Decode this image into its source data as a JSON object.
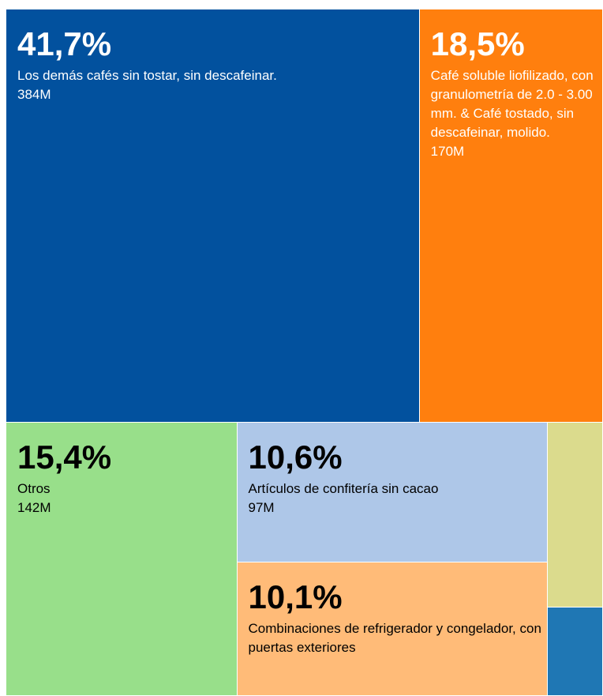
{
  "chart_data": {
    "type": "treemap",
    "names": [
      "Los demás cafés sin tostar, sin descafeinar.",
      "Café soluble liofilizado, con granulometría de 2.0 - 3.00 mm. & Café tostado, sin descafeinar, molido.",
      "Otros",
      "Artículos de confitería sin cacao",
      "Combinaciones de refrigerador y congelador, con puertas exteriores",
      null,
      null
    ],
    "values": [
      41.7,
      18.5,
      15.4,
      10.6,
      10.1,
      2.5,
      1.2
    ],
    "value_labels": [
      "41,7%",
      "18,5%",
      "15,4%",
      "10,6%",
      "10,1%",
      null,
      null
    ],
    "amounts": [
      384,
      170,
      142,
      97,
      null,
      null,
      null
    ],
    "amount_labels": [
      "384M",
      "170M",
      "142M",
      "97M",
      null,
      null,
      null
    ],
    "colors": [
      "#02519e",
      "#ff7f0e",
      "#98df8a",
      "#aec7e8",
      "#ffbb78",
      "#dbdb8d",
      "#1f77b4"
    ],
    "text_colors": [
      "#ffffff",
      "#ffffff",
      "#000000",
      "#000000",
      "#000000",
      "#000000",
      "#ffffff"
    ]
  }
}
